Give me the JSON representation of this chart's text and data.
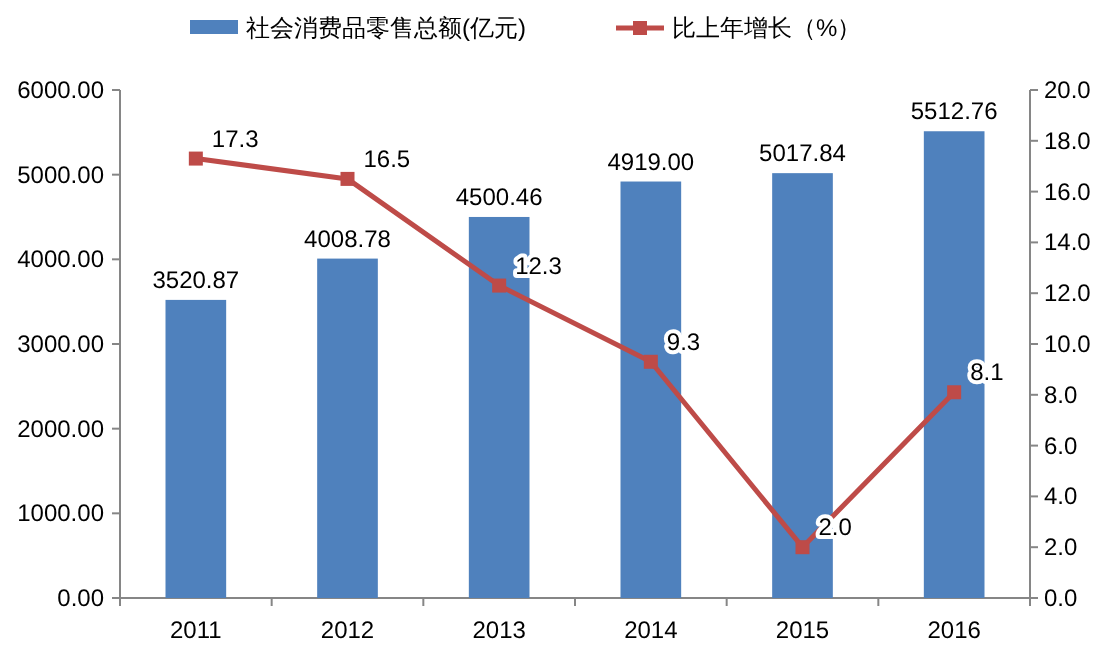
{
  "chart_data": {
    "type": "bar",
    "categories": [
      "2011",
      "2012",
      "2013",
      "2014",
      "2015",
      "2016"
    ],
    "series": [
      {
        "name": "社会消费品零售总额(亿元)",
        "color": "#4f81bd",
        "values": [
          3520.87,
          4008.78,
          4500.46,
          4919.0,
          5017.84,
          5512.76
        ],
        "value_labels": [
          "3520.87",
          "4008.78",
          "4500.46",
          "4919.00",
          "5017.84",
          "5512.76"
        ]
      },
      {
        "name": "比上年增长（%）",
        "type": "line",
        "axis": "y2",
        "color": "#be4b48",
        "marker": "square",
        "values": [
          17.3,
          16.5,
          12.3,
          9.3,
          2.0,
          8.1
        ],
        "value_labels": [
          "17.3",
          "16.5",
          "12.3",
          "9.3",
          "2.0",
          "8.1"
        ]
      }
    ],
    "ylim": [
      0,
      6000
    ],
    "yticks": [
      {
        "value": 0,
        "label": "0.00"
      },
      {
        "value": 1000,
        "label": "1000.00"
      },
      {
        "value": 2000,
        "label": "2000.00"
      },
      {
        "value": 3000,
        "label": "3000.00"
      },
      {
        "value": 4000,
        "label": "4000.00"
      },
      {
        "value": 5000,
        "label": "5000.00"
      },
      {
        "value": 6000,
        "label": "6000.00"
      }
    ],
    "y2lim": [
      0,
      20
    ],
    "y2ticks": [
      {
        "value": 0,
        "label": "0.0"
      },
      {
        "value": 2,
        "label": "2.0"
      },
      {
        "value": 4,
        "label": "4.0"
      },
      {
        "value": 6,
        "label": "6.0"
      },
      {
        "value": 8,
        "label": "8.0"
      },
      {
        "value": 10,
        "label": "10.0"
      },
      {
        "value": 12,
        "label": "12.0"
      },
      {
        "value": 14,
        "label": "14.0"
      },
      {
        "value": 16,
        "label": "16.0"
      },
      {
        "value": 18,
        "label": "18.0"
      },
      {
        "value": 20,
        "label": "20.0"
      }
    ],
    "legend": "top",
    "grid": false
  }
}
